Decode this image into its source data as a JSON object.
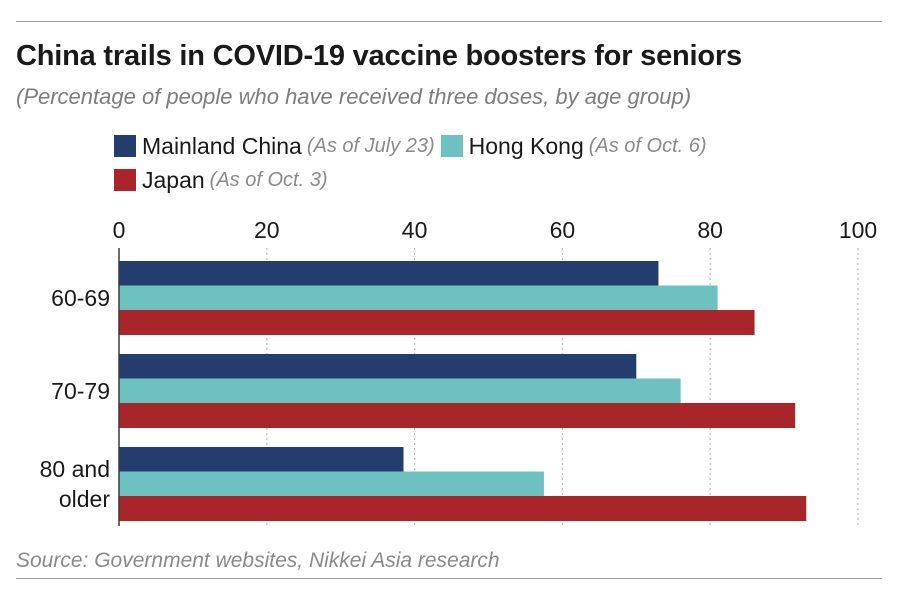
{
  "title": "China trails in COVID-19 vaccine boosters for seniors",
  "subtitle": "(Percentage of people who have received three doses, by age group)",
  "source": "Source: Government websites, Nikkei Asia research",
  "legend": [
    {
      "name": "Mainland China",
      "note": "(As of July 23)",
      "color": "#233e6e"
    },
    {
      "name": "Hong Kong",
      "note": "(As of Oct. 6)",
      "color": "#6ec1c1"
    },
    {
      "name": "Japan",
      "note": "(As of Oct. 3)",
      "color": "#a8262a"
    }
  ],
  "chart_data": {
    "type": "bar",
    "orientation": "horizontal",
    "categories": [
      "60-69",
      "70-79",
      "80 and older"
    ],
    "series": [
      {
        "name": "Mainland China",
        "values": [
          73,
          70,
          38.5
        ],
        "color": "#233e6e"
      },
      {
        "name": "Hong Kong",
        "values": [
          81,
          76,
          57.5
        ],
        "color": "#6ec1c1"
      },
      {
        "name": "Japan",
        "values": [
          86,
          91.5,
          93
        ],
        "color": "#a8262a"
      }
    ],
    "xlim": [
      0,
      100
    ],
    "x_ticks": [
      0,
      20,
      40,
      60,
      80,
      100
    ],
    "x_tick_labels": [
      "0",
      "20",
      "40",
      "60",
      "80",
      "100"
    ],
    "axis_position": "top",
    "grid": "vertical-dotted",
    "legend_position": "top"
  }
}
